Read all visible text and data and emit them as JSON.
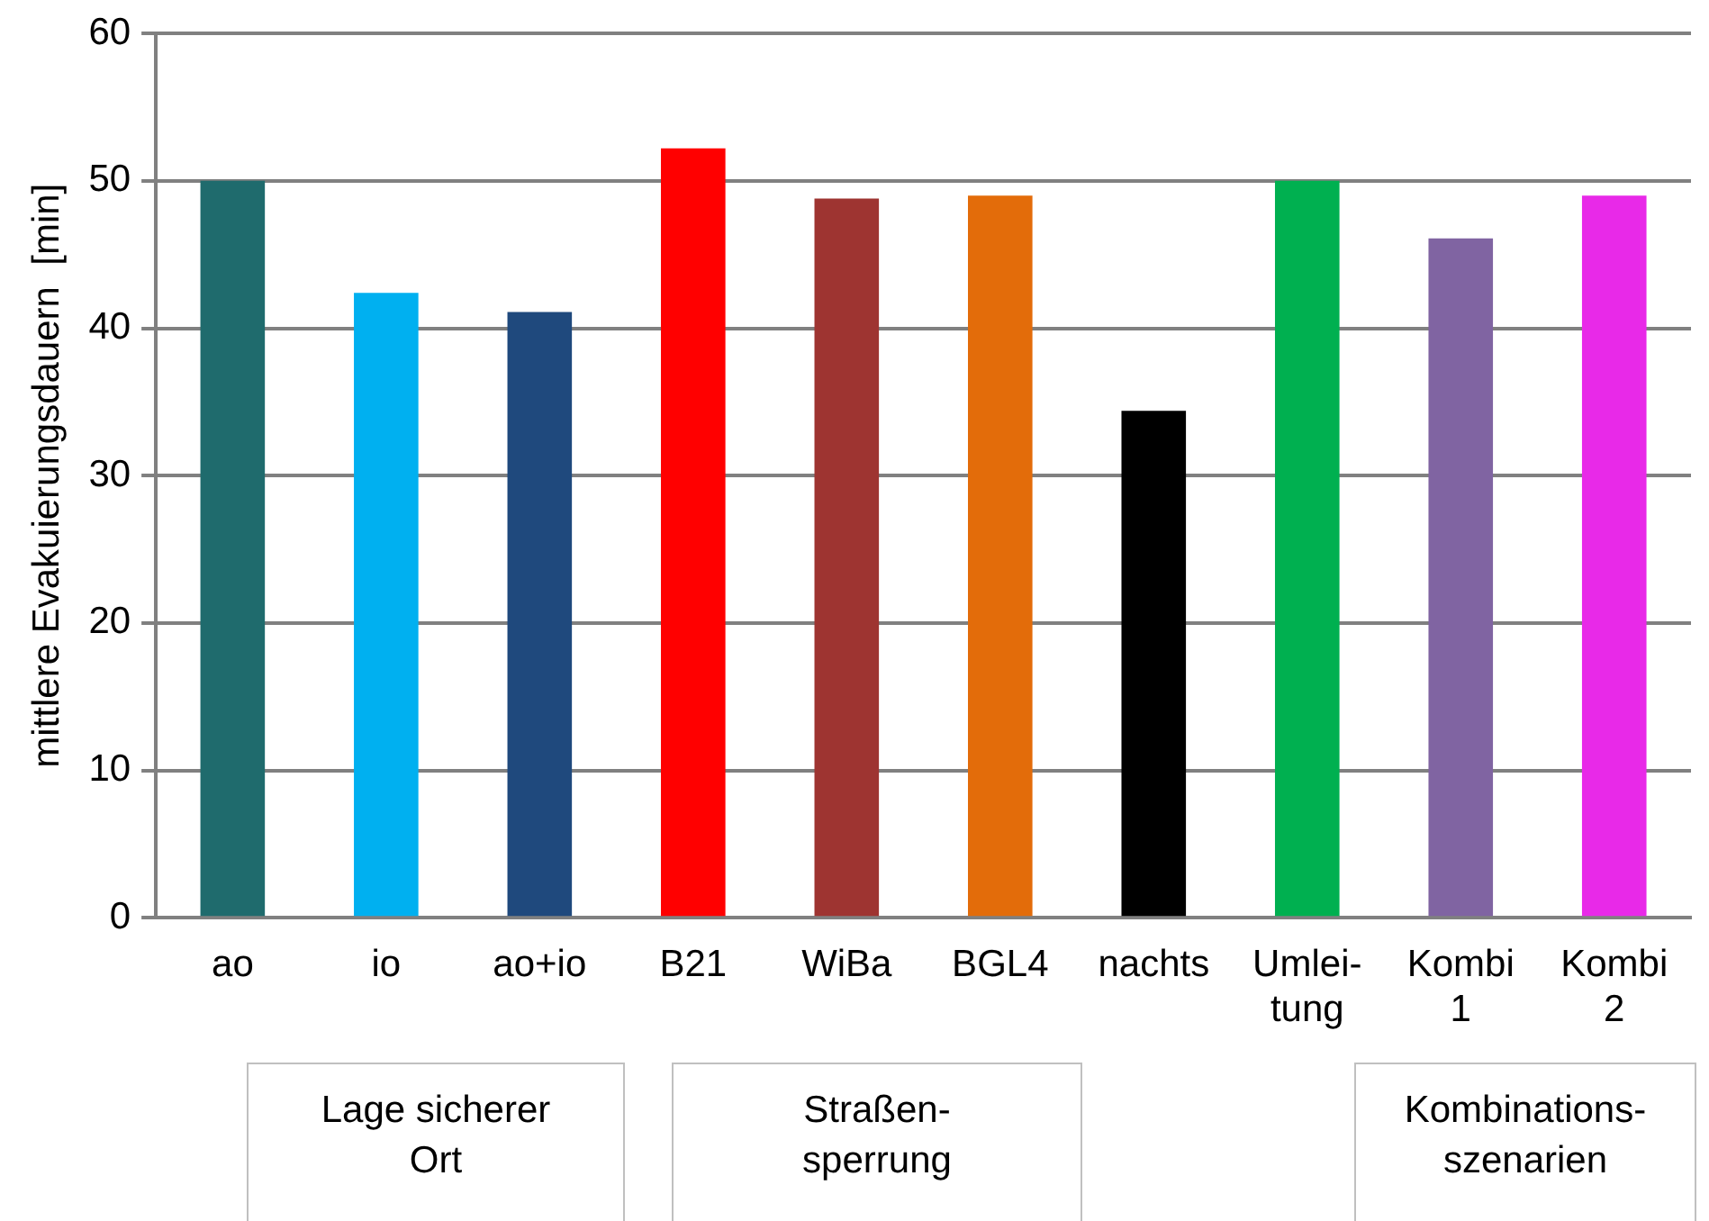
{
  "chart_data": {
    "type": "bar",
    "ylabel": "mittlere Evakuierungsdauern  [min]",
    "categories": [
      "ao",
      "io",
      "ao+io",
      "B21",
      "WiBa",
      "BGL4",
      "nachts",
      "Umlei-\ntung",
      "Kombi\n1",
      "Kombi\n2"
    ],
    "values": [
      50.0,
      42.4,
      41.1,
      52.2,
      48.8,
      49.0,
      34.4,
      50.0,
      46.1,
      49.0
    ],
    "colors": [
      "#1f6b6d",
      "#00b0f0",
      "#1f497d",
      "#ff0000",
      "#9e3431",
      "#e36c0a",
      "#000000",
      "#00b050",
      "#8064a2",
      "#e829e8"
    ],
    "ylim": [
      0,
      60
    ],
    "yticks": [
      0,
      10,
      20,
      30,
      40,
      50,
      60
    ],
    "grid": "y",
    "legend": false,
    "annotations": [
      "Lage sicherer\nOrt",
      "Straßen-\nsperrung",
      "Kombinations-\nszenarien"
    ]
  }
}
